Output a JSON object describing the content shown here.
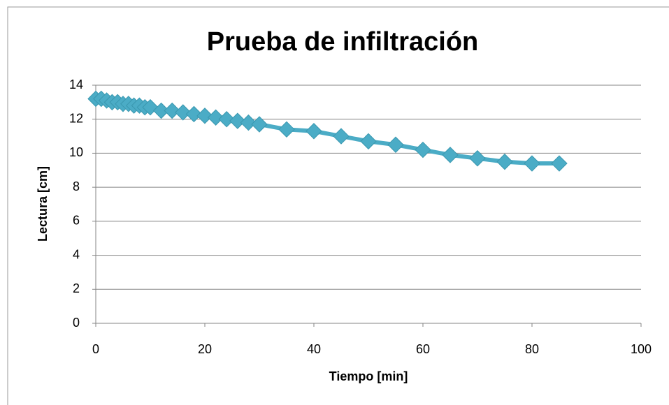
{
  "chart_data": {
    "type": "line",
    "title": "Prueba de infiltración",
    "x_label": "Tiempo [min]",
    "y_label": "Lectura [cm]",
    "x": [
      0,
      1,
      2,
      3,
      4,
      5,
      6,
      7,
      8,
      9,
      10,
      12,
      14,
      16,
      18,
      20,
      22,
      24,
      26,
      28,
      30,
      35,
      40,
      45,
      50,
      55,
      60,
      65,
      70,
      75,
      80,
      85
    ],
    "values": [
      13.2,
      13.2,
      13.1,
      13.0,
      13.0,
      12.9,
      12.9,
      12.8,
      12.8,
      12.7,
      12.7,
      12.5,
      12.5,
      12.4,
      12.3,
      12.2,
      12.1,
      12.0,
      11.9,
      11.8,
      11.7,
      11.4,
      11.3,
      11.0,
      10.7,
      10.5,
      10.2,
      9.9,
      9.7,
      9.5,
      9.4,
      9.4
    ],
    "color": "#4bacc6",
    "xlim": [
      0,
      100
    ],
    "xticks": [
      0,
      20,
      40,
      60,
      80,
      100
    ],
    "ylim": [
      0,
      14
    ],
    "yticks": [
      0,
      2,
      4,
      6,
      8,
      10,
      12,
      14
    ],
    "grid": true
  }
}
